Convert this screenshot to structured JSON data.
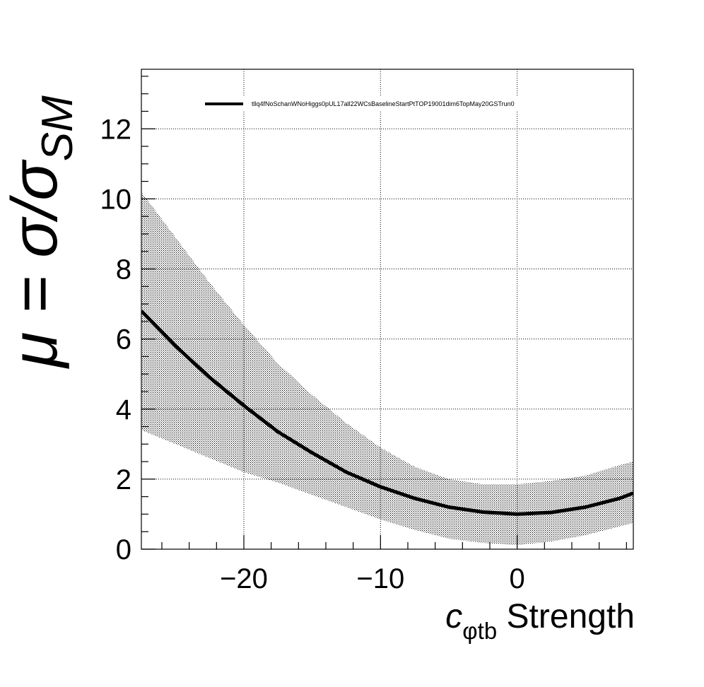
{
  "chart_data": {
    "type": "line",
    "title": "",
    "xlabel": {
      "main": "c",
      "sub": "φtb",
      "suffix": " Strength"
    },
    "ylabel": {
      "prefix": "μ = σ/σ",
      "sub": "SM"
    },
    "xlim": [
      -27.5,
      8.5
    ],
    "ylim": [
      0,
      13.7
    ],
    "xticks": [
      -20,
      -10,
      0
    ],
    "xtick_labels": [
      "−20",
      "−10",
      "0"
    ],
    "yticks": [
      0,
      2,
      4,
      6,
      8,
      10,
      12
    ],
    "ytick_labels": [
      "0",
      "2",
      "4",
      "6",
      "8",
      "10",
      "12"
    ],
    "grid": true,
    "legend_position": "top",
    "series": [
      {
        "name": "tllq4fNoSchanWNoHiggs0pUL17all22WCsBaselineStartPtTOP19001dim6TopMay20GSTrun0",
        "color": "#000000",
        "x": [
          -27.5,
          -25,
          -22.5,
          -20,
          -17.5,
          -15,
          -12.5,
          -10,
          -7.5,
          -5,
          -2.5,
          0,
          2.5,
          5,
          7.5,
          8.5
        ],
        "y": [
          6.8,
          5.8,
          4.9,
          4.1,
          3.35,
          2.75,
          2.2,
          1.78,
          1.45,
          1.2,
          1.06,
          1.0,
          1.05,
          1.2,
          1.45,
          1.6
        ],
        "band_upper": [
          10.2,
          8.9,
          7.6,
          6.4,
          5.3,
          4.4,
          3.6,
          2.9,
          2.35,
          2.0,
          1.85,
          1.85,
          1.95,
          2.1,
          2.4,
          2.5
        ],
        "band_lower": [
          3.4,
          3.0,
          2.6,
          2.2,
          1.9,
          1.55,
          1.2,
          0.85,
          0.55,
          0.3,
          0.18,
          0.12,
          0.22,
          0.4,
          0.65,
          0.75
        ]
      }
    ]
  }
}
